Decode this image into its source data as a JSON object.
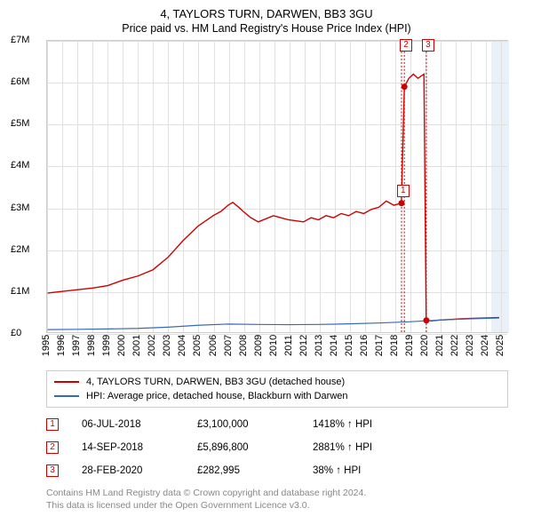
{
  "title": "4, TAYLORS TURN, DARWEN, BB3 3GU",
  "subtitle": "Price paid vs. HM Land Registry's House Price Index (HPI)",
  "chart": {
    "type": "line",
    "background_color": "#ffffff",
    "grid_color": "#e0e0e0",
    "border_color": "#cccccc",
    "xlim": [
      1995,
      2025.5
    ],
    "ylim": [
      0,
      7000000
    ],
    "yticks": [
      0,
      1000000,
      2000000,
      3000000,
      4000000,
      5000000,
      6000000,
      7000000
    ],
    "ytick_labels": [
      "£0",
      "£1M",
      "£2M",
      "£3M",
      "£4M",
      "£5M",
      "£6M",
      "£7M"
    ],
    "xticks": [
      1995,
      1996,
      1997,
      1998,
      1999,
      2000,
      2001,
      2002,
      2003,
      2004,
      2005,
      2006,
      2007,
      2008,
      2009,
      2010,
      2011,
      2012,
      2013,
      2014,
      2015,
      2016,
      2017,
      2018,
      2019,
      2020,
      2021,
      2022,
      2023,
      2024,
      2025
    ],
    "future_shade_start": 2024.3,
    "series": [
      {
        "name": "price_paid",
        "label": "4, TAYLORS TURN, DARWEN, BB3 3GU (detached house)",
        "color": "#cc0000",
        "width": 1.4,
        "points": [
          [
            1995,
            940000
          ],
          [
            1996,
            980000
          ],
          [
            1997,
            1020000
          ],
          [
            1998,
            1060000
          ],
          [
            1999,
            1120000
          ],
          [
            2000,
            1250000
          ],
          [
            2001,
            1350000
          ],
          [
            2002,
            1500000
          ],
          [
            2003,
            1800000
          ],
          [
            2004,
            2200000
          ],
          [
            2005,
            2550000
          ],
          [
            2006,
            2800000
          ],
          [
            2006.5,
            2900000
          ],
          [
            2007,
            3050000
          ],
          [
            2007.3,
            3120000
          ],
          [
            2007.7,
            3000000
          ],
          [
            2008,
            2900000
          ],
          [
            2008.5,
            2750000
          ],
          [
            2009,
            2650000
          ],
          [
            2010,
            2800000
          ],
          [
            2010.5,
            2750000
          ],
          [
            2011,
            2700000
          ],
          [
            2012,
            2650000
          ],
          [
            2012.5,
            2750000
          ],
          [
            2013,
            2700000
          ],
          [
            2013.5,
            2800000
          ],
          [
            2014,
            2750000
          ],
          [
            2014.5,
            2850000
          ],
          [
            2015,
            2800000
          ],
          [
            2015.5,
            2900000
          ],
          [
            2016,
            2850000
          ],
          [
            2016.5,
            2950000
          ],
          [
            2017,
            3000000
          ],
          [
            2017.5,
            3150000
          ],
          [
            2018,
            3050000
          ],
          [
            2018.5,
            3100000
          ],
          [
            2018.7,
            5896800
          ],
          [
            2019,
            6100000
          ],
          [
            2019.3,
            6200000
          ],
          [
            2019.6,
            6100000
          ],
          [
            2020,
            6200000
          ],
          [
            2020.15,
            282995
          ],
          [
            2020.5,
            270000
          ],
          [
            2021,
            290000
          ],
          [
            2021.5,
            300000
          ],
          [
            2022,
            310000
          ],
          [
            2022.5,
            320000
          ],
          [
            2023,
            330000
          ],
          [
            2024,
            340000
          ],
          [
            2025,
            350000
          ]
        ]
      },
      {
        "name": "hpi",
        "label": "HPI: Average price, detached house, Blackburn with Darwen",
        "color": "#3b68b5",
        "width": 1.2,
        "points": [
          [
            1995,
            62000
          ],
          [
            1997,
            68000
          ],
          [
            1999,
            77000
          ],
          [
            2001,
            90000
          ],
          [
            2003,
            120000
          ],
          [
            2005,
            165000
          ],
          [
            2007,
            195000
          ],
          [
            2009,
            185000
          ],
          [
            2011,
            180000
          ],
          [
            2013,
            185000
          ],
          [
            2015,
            200000
          ],
          [
            2017,
            220000
          ],
          [
            2019,
            250000
          ],
          [
            2021,
            290000
          ],
          [
            2023,
            320000
          ],
          [
            2025,
            340000
          ]
        ]
      }
    ],
    "event_markers": [
      {
        "num": "1",
        "x": 2018.51,
        "y": 3100000,
        "color": "#cc0000",
        "dot": true
      },
      {
        "num": "2",
        "x": 2018.7,
        "y": 5896800,
        "color": "#cc0000",
        "dot": true,
        "box_top": true
      },
      {
        "num": "3",
        "x": 2020.16,
        "y": 282995,
        "color": "#cc0000",
        "dot": true,
        "box_top": true
      }
    ]
  },
  "legend": {
    "items": [
      {
        "color": "#cc0000",
        "label": "4, TAYLORS TURN, DARWEN, BB3 3GU (detached house)"
      },
      {
        "color": "#3b68b5",
        "label": "HPI: Average price, detached house, Blackburn with Darwen"
      }
    ]
  },
  "transactions": [
    {
      "num": "1",
      "color": "#cc0000",
      "date": "06-JUL-2018",
      "price": "£3,100,000",
      "hpi": "1418% ↑ HPI"
    },
    {
      "num": "2",
      "color": "#cc0000",
      "date": "14-SEP-2018",
      "price": "£5,896,800",
      "hpi": "2881% ↑ HPI"
    },
    {
      "num": "3",
      "color": "#cc0000",
      "date": "28-FEB-2020",
      "price": "£282,995",
      "hpi": "38% ↑ HPI"
    }
  ],
  "footer": {
    "line1": "Contains HM Land Registry data © Crown copyright and database right 2024.",
    "line2": "This data is licensed under the Open Government Licence v3.0."
  }
}
